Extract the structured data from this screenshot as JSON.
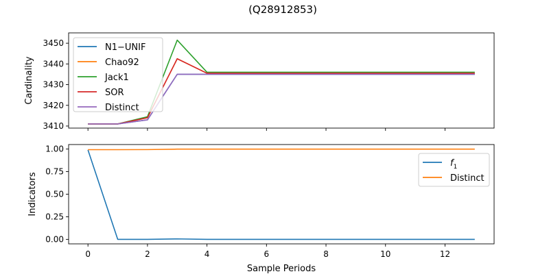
{
  "figure_title": "(Q28912853)",
  "chart_data": [
    {
      "type": "line",
      "title": "",
      "xlabel": "",
      "ylabel": "Cardinality",
      "xlim": [
        -0.65,
        13.65
      ],
      "ylim": [
        3409,
        3455
      ],
      "x": [
        0,
        1,
        2,
        3,
        4,
        5,
        6,
        7,
        8,
        9,
        10,
        11,
        12,
        13
      ],
      "x_ticks": [
        0,
        2,
        4,
        6,
        8,
        10,
        12
      ],
      "show_x_tick_labels": false,
      "y_ticks": [
        3410,
        3420,
        3430,
        3440,
        3450
      ],
      "legend_position": "upper left",
      "grid": false,
      "series": [
        {
          "name": "N1−UNIF",
          "color": "#1f77b4",
          "values": [
            3411,
            3411,
            3413,
            3435,
            3435,
            3435,
            3435,
            3435,
            3435,
            3435,
            3435,
            3435,
            3435,
            3435
          ]
        },
        {
          "name": "Chao92",
          "color": "#ff7f0e",
          "values": [
            3411,
            3411,
            3414,
            3442.5,
            3435.5,
            3435.5,
            3435.5,
            3435.5,
            3435.5,
            3435.5,
            3435.5,
            3435.5,
            3435.5,
            3435.5
          ]
        },
        {
          "name": "Jack1",
          "color": "#2ca02c",
          "values": [
            3411,
            3411,
            3414.5,
            3451.5,
            3436,
            3436,
            3436,
            3436,
            3436,
            3436,
            3436,
            3436,
            3436,
            3436
          ]
        },
        {
          "name": "SOR",
          "color": "#d62728",
          "values": [
            3411,
            3411,
            3414,
            3442.5,
            3435.5,
            3435.5,
            3435.5,
            3435.5,
            3435.5,
            3435.5,
            3435.5,
            3435.5,
            3435.5,
            3435.5
          ]
        },
        {
          "name": "Distinct",
          "color": "#9467bd",
          "values": [
            3411,
            3411,
            3413,
            3435,
            3435,
            3435,
            3435,
            3435,
            3435,
            3435,
            3435,
            3435,
            3435,
            3435
          ]
        }
      ]
    },
    {
      "type": "line",
      "title": "",
      "xlabel": "Sample Periods",
      "ylabel": "Indicators",
      "xlim": [
        -0.65,
        13.65
      ],
      "ylim": [
        -0.05,
        1.05
      ],
      "x": [
        0,
        1,
        2,
        3,
        4,
        5,
        6,
        7,
        8,
        9,
        10,
        11,
        12,
        13
      ],
      "x_ticks": [
        0,
        2,
        4,
        6,
        8,
        10,
        12
      ],
      "show_x_tick_labels": true,
      "y_ticks": [
        0.0,
        0.25,
        0.5,
        0.75,
        1.0
      ],
      "y_tick_labels": [
        "0.00",
        "0.25",
        "0.50",
        "0.75",
        "1.00"
      ],
      "legend_position": "upper right",
      "grid": false,
      "series": [
        {
          "name": "f",
          "name_subscript": "1",
          "color": "#1f77b4",
          "values": [
            0.99,
            0.0,
            0.0,
            0.005,
            0.0,
            0.0,
            0.0,
            0.0,
            0.0,
            0.0,
            0.0,
            0.0,
            0.0,
            0.0
          ]
        },
        {
          "name": "Distinct",
          "color": "#ff7f0e",
          "values": [
            0.993,
            0.993,
            0.994,
            0.999,
            0.999,
            0.999,
            0.999,
            0.999,
            0.999,
            0.999,
            0.999,
            0.999,
            0.999,
            0.999
          ]
        }
      ]
    }
  ]
}
